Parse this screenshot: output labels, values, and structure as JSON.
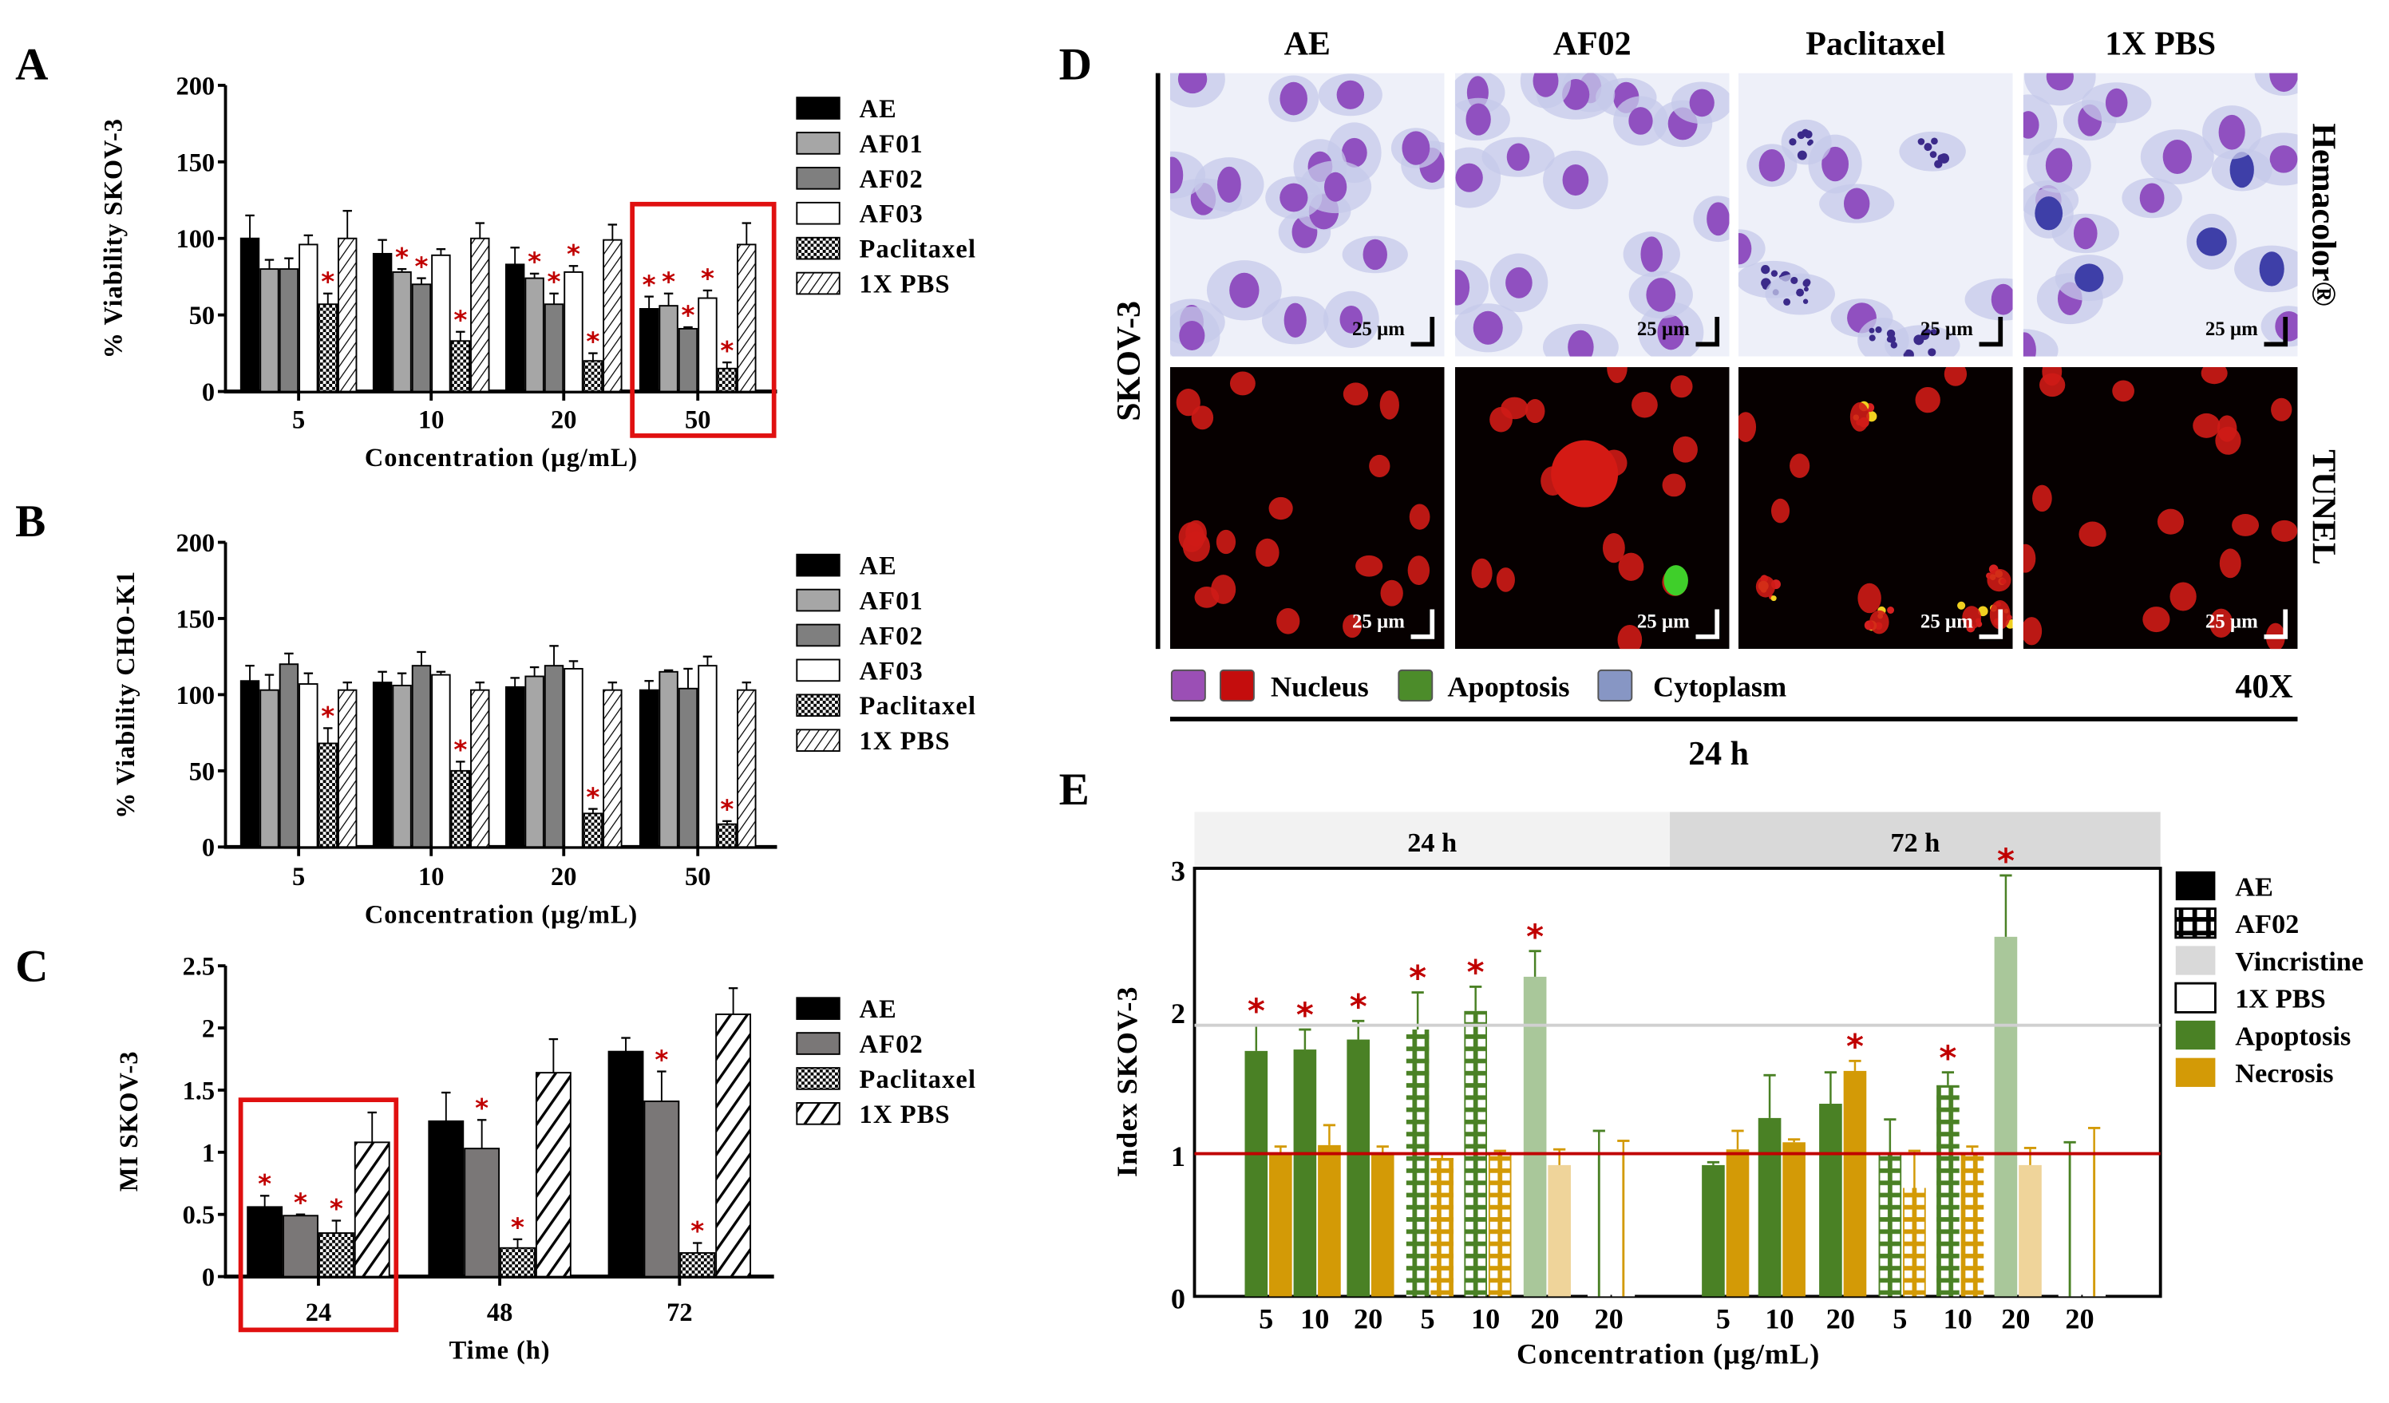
{
  "panel_labels": {
    "a": "A",
    "b": "B",
    "c": "C",
    "d": "D",
    "e": "E"
  },
  "significance_marker": "*",
  "chart_data": [
    {
      "id": "A",
      "type": "bar",
      "title": "",
      "ylabel": "% Viability SKOV-3",
      "xlabel": "Concentration (µg/mL)",
      "ylim": [
        0,
        200
      ],
      "yticks": [
        "0",
        "50",
        "100",
        "150",
        "200"
      ],
      "categories": [
        "5",
        "10",
        "20",
        "50"
      ],
      "highlighted_category": "50",
      "legend_position": "right",
      "series": [
        {
          "name": "AE",
          "color": "#000000",
          "pattern": "solid",
          "values": [
            100,
            90,
            83,
            54
          ],
          "errors": [
            15,
            9,
            11,
            8
          ],
          "significant": [
            false,
            false,
            false,
            true
          ]
        },
        {
          "name": "AF01",
          "color": "#a6a6a6",
          "pattern": "solid",
          "values": [
            80,
            78,
            74,
            56
          ],
          "errors": [
            6,
            2,
            3,
            8
          ],
          "significant": [
            false,
            true,
            true,
            true
          ]
        },
        {
          "name": "AF02",
          "color": "#7f7f7f",
          "pattern": "solid",
          "values": [
            80,
            70,
            57,
            41
          ],
          "errors": [
            7,
            4,
            7,
            1
          ],
          "significant": [
            false,
            true,
            true,
            true
          ]
        },
        {
          "name": "AF03",
          "color": "#ffffff",
          "pattern": "solid",
          "values": [
            96,
            89,
            78,
            61
          ],
          "errors": [
            6,
            4,
            4,
            5
          ],
          "significant": [
            false,
            false,
            true,
            true
          ]
        },
        {
          "name": "Paclitaxel",
          "color": "#000000",
          "pattern": "checker",
          "values": [
            57,
            33,
            20,
            15
          ],
          "errors": [
            7,
            6,
            5,
            4
          ],
          "significant": [
            true,
            true,
            true,
            true
          ]
        },
        {
          "name": "1X PBS",
          "color": "#000000",
          "pattern": "hatch",
          "values": [
            100,
            100,
            99,
            96
          ],
          "errors": [
            18,
            10,
            10,
            14
          ],
          "significant": [
            false,
            false,
            false,
            false
          ]
        }
      ]
    },
    {
      "id": "B",
      "type": "bar",
      "title": "",
      "ylabel": "% Viability CHO-K1",
      "xlabel": "Concentration (µg/mL)",
      "ylim": [
        0,
        200
      ],
      "yticks": [
        "0",
        "50",
        "100",
        "150",
        "200"
      ],
      "categories": [
        "5",
        "10",
        "20",
        "50"
      ],
      "highlighted_category": null,
      "legend_position": "right",
      "series": [
        {
          "name": "AE",
          "color": "#000000",
          "pattern": "solid",
          "values": [
            109,
            108,
            105,
            103
          ],
          "errors": [
            10,
            7,
            6,
            6
          ],
          "significant": [
            false,
            false,
            false,
            false
          ]
        },
        {
          "name": "AF01",
          "color": "#a6a6a6",
          "pattern": "solid",
          "values": [
            103,
            106,
            112,
            115
          ],
          "errors": [
            10,
            8,
            6,
            1
          ],
          "significant": [
            false,
            false,
            false,
            false
          ]
        },
        {
          "name": "AF02",
          "color": "#7f7f7f",
          "pattern": "solid",
          "values": [
            120,
            119,
            119,
            104
          ],
          "errors": [
            7,
            9,
            13,
            13
          ],
          "significant": [
            false,
            false,
            false,
            false
          ]
        },
        {
          "name": "AF03",
          "color": "#ffffff",
          "pattern": "solid",
          "values": [
            107,
            113,
            117,
            119
          ],
          "errors": [
            7,
            2,
            5,
            6
          ],
          "significant": [
            false,
            false,
            false,
            false
          ]
        },
        {
          "name": "Paclitaxel",
          "color": "#000000",
          "pattern": "checker",
          "values": [
            68,
            50,
            22,
            15
          ],
          "errors": [
            10,
            6,
            3,
            2
          ],
          "significant": [
            true,
            true,
            true,
            true
          ]
        },
        {
          "name": "1X PBS",
          "color": "#000000",
          "pattern": "hatch",
          "values": [
            103,
            103,
            103,
            103
          ],
          "errors": [
            5,
            5,
            5,
            5
          ],
          "significant": [
            false,
            false,
            false,
            false
          ]
        }
      ]
    },
    {
      "id": "C",
      "type": "bar",
      "title": "",
      "ylabel": "MI SKOV-3",
      "xlabel": "Time (h)",
      "ylim": [
        0,
        2.5
      ],
      "yticks": [
        "0",
        "0.5",
        "1",
        "1.5",
        "2",
        "2.5"
      ],
      "categories": [
        "24",
        "48",
        "72"
      ],
      "highlighted_category": "24",
      "legend_position": "right",
      "series": [
        {
          "name": "AE",
          "color": "#000000",
          "pattern": "solid",
          "values": [
            0.56,
            1.25,
            1.81
          ],
          "errors": [
            0.09,
            0.23,
            0.11
          ],
          "significant": [
            true,
            false,
            false
          ]
        },
        {
          "name": "AF02",
          "color": "#7a7777",
          "pattern": "solid",
          "values": [
            0.49,
            1.03,
            1.41
          ],
          "errors": [
            0.01,
            0.23,
            0.24
          ],
          "significant": [
            true,
            true,
            true
          ]
        },
        {
          "name": "Paclitaxel",
          "color": "#000000",
          "pattern": "checker",
          "values": [
            0.35,
            0.23,
            0.19
          ],
          "errors": [
            0.1,
            0.07,
            0.08
          ],
          "significant": [
            true,
            true,
            true
          ]
        },
        {
          "name": "1X PBS",
          "color": "#000000",
          "pattern": "hatch",
          "values": [
            1.08,
            1.64,
            2.11
          ],
          "errors": [
            0.24,
            0.27,
            0.21
          ],
          "significant": [
            false,
            false,
            false
          ]
        }
      ]
    },
    {
      "id": "E",
      "type": "bar",
      "title": "",
      "ylabel": "Index SKOV-3",
      "xlabel": "Concentration (µg/mL)",
      "ylim": [
        0,
        3
      ],
      "yticks": [
        "0",
        "1",
        "2",
        "3"
      ],
      "time_groups": [
        "24 h",
        "72 h"
      ],
      "categories": [
        "5",
        "10",
        "20",
        "5",
        "10",
        "20",
        "20",
        "5",
        "10",
        "20",
        "5",
        "10",
        "20",
        "20"
      ],
      "time": [
        "24 h",
        "24 h",
        "24 h",
        "24 h",
        "24 h",
        "24 h",
        "24 h",
        "72 h",
        "72 h",
        "72 h",
        "72 h",
        "72 h",
        "72 h",
        "72 h"
      ],
      "treatment": [
        "AE",
        "AE",
        "AE",
        "AF02",
        "AF02",
        "Vincristine",
        "1X PBS",
        "AE",
        "AE",
        "AE",
        "AF02",
        "AF02",
        "Vincristine",
        "1X PBS"
      ],
      "reference_lines": [
        {
          "y": 1,
          "color": "#c00000"
        },
        {
          "y": 1.9,
          "color": "#d0d0d0"
        }
      ],
      "legend_position": "right",
      "legend": [
        {
          "name": "AE",
          "color": "#000000",
          "pattern": "solid"
        },
        {
          "name": "AF02",
          "color": "#000000",
          "pattern": "grid"
        },
        {
          "name": "Vincristine",
          "color": "#d9d9d9",
          "pattern": "solid"
        },
        {
          "name": "1X PBS",
          "color": "#ffffff",
          "pattern": "outline"
        },
        {
          "name": "Apoptosis",
          "color": "#4a8125",
          "pattern": "solid"
        },
        {
          "name": "Necrosis",
          "color": "#d39a06",
          "pattern": "solid"
        }
      ],
      "series": [
        {
          "name": "Apoptosis",
          "color": "#4a8125",
          "light_color": "#a9c79a",
          "values": [
            1.72,
            1.73,
            1.8,
            1.87,
            2.0,
            2.24,
            1.0,
            0.92,
            1.25,
            1.35,
            1.0,
            1.48,
            2.52,
            1.0
          ],
          "errors": [
            0.18,
            0.14,
            0.13,
            0.26,
            0.17,
            0.18,
            0.16,
            0.02,
            0.3,
            0.22,
            0.24,
            0.09,
            0.43,
            0.08
          ],
          "significant": [
            true,
            true,
            true,
            true,
            true,
            true,
            false,
            false,
            false,
            false,
            false,
            true,
            true,
            false
          ]
        },
        {
          "name": "Necrosis",
          "color": "#d39a06",
          "light_color": "#efd49a",
          "values": [
            1.0,
            1.06,
            1.01,
            0.97,
            1.0,
            0.92,
            1.0,
            1.03,
            1.08,
            1.58,
            0.76,
            1.0,
            0.92,
            1.0
          ],
          "errors": [
            0.05,
            0.14,
            0.04,
            0.03,
            0.02,
            0.11,
            0.09,
            0.13,
            0.02,
            0.07,
            0.26,
            0.05,
            0.12,
            0.18
          ],
          "significant": [
            false,
            false,
            false,
            false,
            false,
            false,
            false,
            false,
            false,
            true,
            false,
            false,
            false,
            false
          ]
        }
      ]
    }
  ],
  "panel_d": {
    "columns": [
      "AE",
      "AF02",
      "Paclitaxel",
      "1X PBS"
    ],
    "row_group_label": "SKOV-3",
    "rows": [
      "Hemacolor®",
      "TUNEL"
    ],
    "scale_bar": "25 µm",
    "legend": [
      {
        "name": "Nucleus",
        "colors": [
          "#9b4fb5",
          "#c40d0d"
        ]
      },
      {
        "name": "Apoptosis",
        "colors": [
          "#4c8c2a"
        ]
      },
      {
        "name": "Cytoplasm",
        "colors": [
          "#8796c4"
        ]
      }
    ],
    "magnification": "40X",
    "time": "24 h"
  }
}
